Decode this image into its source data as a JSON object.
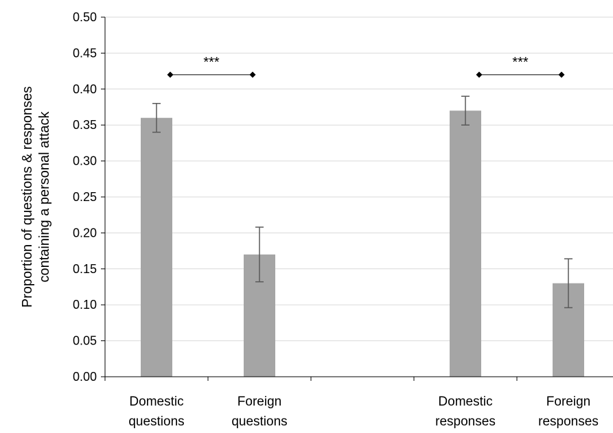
{
  "chart_data": {
    "type": "bar",
    "ylabel_lines": [
      "Proportion of questions & responses",
      "containing a personal attack"
    ],
    "ylim": [
      0,
      0.5
    ],
    "ytick_step": 0.05,
    "grid": true,
    "slots": 6,
    "categories": [
      {
        "lines": [
          "Domestic",
          "questions"
        ],
        "slot": 0
      },
      {
        "lines": [
          "Foreign",
          "questions"
        ],
        "slot": 1
      },
      {
        "lines": [
          "Domestic",
          "responses"
        ],
        "slot": 3
      },
      {
        "lines": [
          "Foreign",
          "responses"
        ],
        "slot": 4
      }
    ],
    "series": [
      {
        "values": [
          0.36,
          0.17,
          0.37,
          0.13
        ],
        "error_low": [
          0.34,
          0.132,
          0.35,
          0.096
        ],
        "error_high": [
          0.38,
          0.208,
          0.39,
          0.164
        ]
      }
    ],
    "significance": [
      {
        "from": 0,
        "to": 1,
        "label": "***",
        "y": 0.42
      },
      {
        "from": 2,
        "to": 3,
        "label": "***",
        "y": 0.42
      }
    ],
    "colors": {
      "bar": "#a5a5a5",
      "grid": "#d9d9d9",
      "axis": "#000000",
      "error": "#595959"
    }
  }
}
